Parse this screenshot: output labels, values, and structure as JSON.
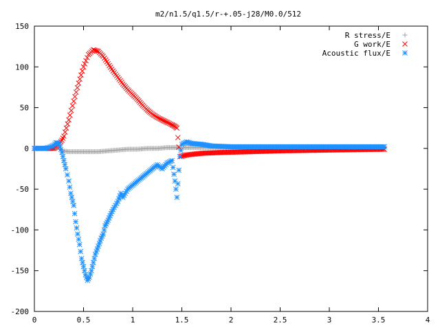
{
  "chart_data": {
    "type": "scatter",
    "title": "m2/n1.5/q1.5/r-+.05-j28/M0.0/512",
    "xlabel": "",
    "ylabel": "",
    "xlim": [
      0,
      4
    ],
    "ylim": [
      -200,
      150
    ],
    "x_ticks": [
      "0",
      "0.5",
      "1",
      "1.5",
      "2",
      "2.5",
      "3",
      "3.5",
      "4"
    ],
    "y_ticks": [
      "150",
      "100",
      "50",
      "0",
      "-50",
      "-100",
      "-150",
      "-200"
    ],
    "grid": false,
    "legend_position": "top-right",
    "series": [
      {
        "name": "R stress/E",
        "marker": "plus",
        "color": "#a0a0a0",
        "points": [
          [
            0.0,
            0
          ],
          [
            0.1,
            0
          ],
          [
            0.2,
            0
          ],
          [
            0.25,
            1
          ],
          [
            0.28,
            -3
          ],
          [
            0.35,
            -4
          ],
          [
            0.45,
            -4
          ],
          [
            0.55,
            -4
          ],
          [
            0.65,
            -4
          ],
          [
            0.75,
            -3
          ],
          [
            0.85,
            -2
          ],
          [
            0.95,
            -1
          ],
          [
            1.05,
            -1
          ],
          [
            1.15,
            0
          ],
          [
            1.25,
            0
          ],
          [
            1.35,
            1
          ],
          [
            1.42,
            1
          ],
          [
            1.5,
            1
          ],
          [
            1.7,
            1
          ],
          [
            2.0,
            1
          ],
          [
            2.5,
            1
          ],
          [
            3.0,
            1
          ],
          [
            3.56,
            1
          ]
        ]
      },
      {
        "name": "G work/E",
        "marker": "cross",
        "color": "#ff0000",
        "points": [
          [
            0.0,
            0
          ],
          [
            0.1,
            0
          ],
          [
            0.2,
            0
          ],
          [
            0.22,
            2
          ],
          [
            0.25,
            5
          ],
          [
            0.28,
            10
          ],
          [
            0.3,
            15
          ],
          [
            0.35,
            35
          ],
          [
            0.4,
            58
          ],
          [
            0.45,
            80
          ],
          [
            0.5,
            100
          ],
          [
            0.55,
            115
          ],
          [
            0.6,
            121
          ],
          [
            0.65,
            119
          ],
          [
            0.7,
            113
          ],
          [
            0.75,
            104
          ],
          [
            0.8,
            95
          ],
          [
            0.85,
            87
          ],
          [
            0.9,
            79
          ],
          [
            0.95,
            72
          ],
          [
            1.0,
            66
          ],
          [
            1.05,
            60
          ],
          [
            1.1,
            53
          ],
          [
            1.15,
            47
          ],
          [
            1.2,
            42
          ],
          [
            1.25,
            38
          ],
          [
            1.3,
            35
          ],
          [
            1.35,
            32
          ],
          [
            1.4,
            29
          ],
          [
            1.43,
            27
          ],
          [
            1.45,
            25
          ],
          [
            1.48,
            -10
          ],
          [
            1.55,
            -8
          ],
          [
            1.7,
            -6
          ],
          [
            1.9,
            -5
          ],
          [
            2.2,
            -4
          ],
          [
            2.5,
            -3
          ],
          [
            3.0,
            -2
          ],
          [
            3.56,
            -1
          ]
        ]
      },
      {
        "name": "Acoustic flux/E",
        "marker": "star",
        "color": "#1e90ff",
        "points": [
          [
            0.0,
            0
          ],
          [
            0.1,
            0
          ],
          [
            0.15,
            1
          ],
          [
            0.2,
            4
          ],
          [
            0.22,
            7
          ],
          [
            0.25,
            6
          ],
          [
            0.28,
            -5
          ],
          [
            0.3,
            -15
          ],
          [
            0.32,
            -25
          ],
          [
            0.35,
            -40
          ],
          [
            0.37,
            -55
          ],
          [
            0.4,
            -70
          ],
          [
            0.42,
            -90
          ],
          [
            0.44,
            -105
          ],
          [
            0.46,
            -118
          ],
          [
            0.48,
            -135
          ],
          [
            0.5,
            -145
          ],
          [
            0.52,
            -155
          ],
          [
            0.54,
            -162
          ],
          [
            0.56,
            -158
          ],
          [
            0.58,
            -150
          ],
          [
            0.6,
            -140
          ],
          [
            0.62,
            -130
          ],
          [
            0.65,
            -120
          ],
          [
            0.68,
            -110
          ],
          [
            0.7,
            -105
          ],
          [
            0.72,
            -95
          ],
          [
            0.75,
            -88
          ],
          [
            0.78,
            -80
          ],
          [
            0.8,
            -75
          ],
          [
            0.85,
            -65
          ],
          [
            0.88,
            -55
          ],
          [
            0.9,
            -60
          ],
          [
            0.95,
            -50
          ],
          [
            1.0,
            -45
          ],
          [
            1.05,
            -40
          ],
          [
            1.1,
            -35
          ],
          [
            1.15,
            -30
          ],
          [
            1.2,
            -25
          ],
          [
            1.25,
            -20
          ],
          [
            1.3,
            -25
          ],
          [
            1.35,
            -18
          ],
          [
            1.4,
            -15
          ],
          [
            1.43,
            -40
          ],
          [
            1.45,
            -60
          ],
          [
            1.48,
            -10
          ],
          [
            1.5,
            5
          ],
          [
            1.55,
            8
          ],
          [
            1.6,
            6
          ],
          [
            1.7,
            5
          ],
          [
            1.8,
            3
          ],
          [
            2.0,
            2
          ],
          [
            2.5,
            2
          ],
          [
            3.0,
            2
          ],
          [
            3.56,
            2
          ]
        ]
      }
    ]
  }
}
